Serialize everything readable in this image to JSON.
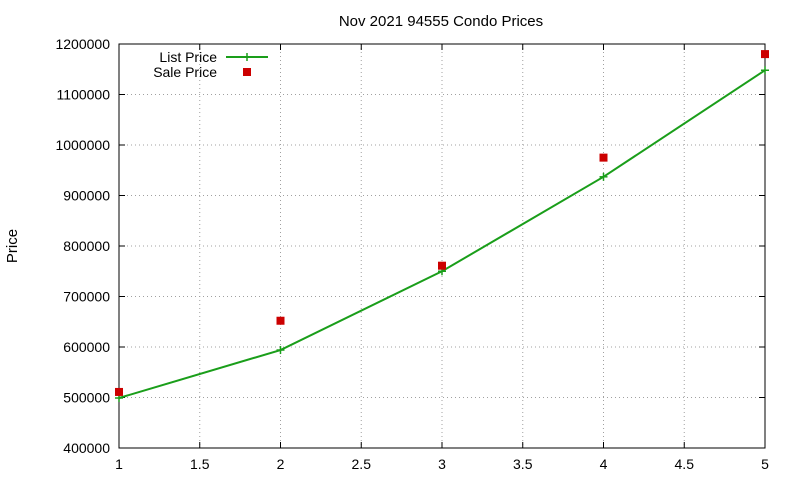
{
  "chart_data": {
    "type": "line",
    "title": "Nov 2021 94555 Condo Prices",
    "xlabel": "",
    "ylabel": "Price",
    "xlim": [
      1,
      5
    ],
    "ylim": [
      400000,
      1200000
    ],
    "xticks": [
      "1",
      "1.5",
      "2",
      "2.5",
      "3",
      "3.5",
      "4",
      "4.5",
      "5"
    ],
    "yticks": [
      "400000",
      "500000",
      "600000",
      "700000",
      "800000",
      "900000",
      "1000000",
      "1100000",
      "1200000"
    ],
    "grid": true,
    "legend_position": "top-left",
    "series": [
      {
        "name": "List Price",
        "style": "line+cross",
        "color": "#1a9e1a",
        "x": [
          1,
          2,
          3,
          4,
          5
        ],
        "y": [
          499000,
          594000,
          750000,
          937000,
          1148000
        ]
      },
      {
        "name": "Sale Price",
        "style": "square",
        "color": "#cc0000",
        "x": [
          1,
          2,
          3,
          4,
          5
        ],
        "y": [
          511000,
          652000,
          761000,
          975000,
          1180000
        ]
      }
    ]
  }
}
